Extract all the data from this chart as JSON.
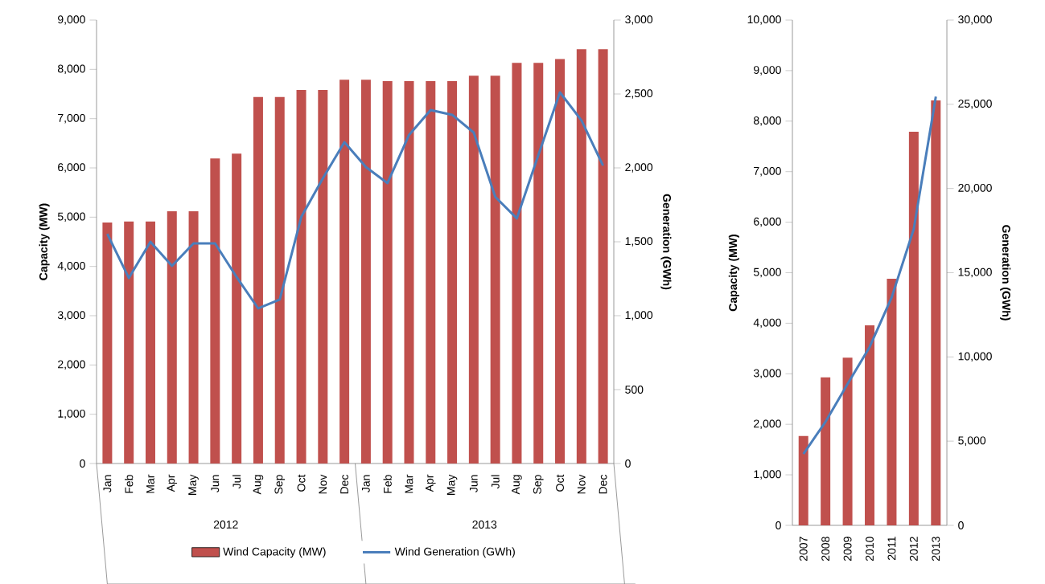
{
  "chart_data": [
    {
      "type": "bar",
      "categories": [
        "Jan",
        "Feb",
        "Mar",
        "Apr",
        "May",
        "Jun",
        "Jul",
        "Aug",
        "Sep",
        "Oct",
        "Nov",
        "Dec",
        "Jan",
        "Feb",
        "Mar",
        "Apr",
        "May",
        "Jun",
        "Jul",
        "Aug",
        "Sep",
        "Oct",
        "Nov",
        "Dec"
      ],
      "series": [
        {
          "name": "Wind Capacity (MW)",
          "color": "#c0504d",
          "values": [
            4890,
            4910,
            4910,
            5120,
            5120,
            6190,
            6290,
            7440,
            7440,
            7580,
            7580,
            7790,
            7790,
            7760,
            7760,
            7760,
            7760,
            7870,
            7870,
            8130,
            8130,
            8210,
            8410,
            8410
          ]
        },
        {
          "name": "Wind Generation (GWh)",
          "type": "line",
          "axis": "y2",
          "color": "#4a7ebb",
          "values": [
            1554,
            1255,
            1500,
            1337,
            1489,
            1489,
            1261,
            1049,
            1109,
            1668,
            1929,
            2174,
            2005,
            1897,
            2223,
            2391,
            2359,
            2239,
            1804,
            1658,
            2087,
            2511,
            2321,
            2016
          ]
        }
      ],
      "ylabel": "Capacity (MW)",
      "y2label": "Generation (GWh)",
      "ylim": [
        0,
        9000
      ],
      "yticks": [
        {
          "value": 0,
          "label": "0"
        },
        {
          "value": 1000,
          "label": "1,000"
        },
        {
          "value": 2000,
          "label": "2,000"
        },
        {
          "value": 3000,
          "label": "3,000"
        },
        {
          "value": 4000,
          "label": "4,000"
        },
        {
          "value": 5000,
          "label": "5,000"
        },
        {
          "value": 6000,
          "label": "6,000"
        },
        {
          "value": 7000,
          "label": "7,000"
        },
        {
          "value": 8000,
          "label": "8,000"
        },
        {
          "value": 9000,
          "label": "9,000"
        }
      ],
      "y2lim": [
        0,
        3000
      ],
      "y2ticks": [
        {
          "value": 0,
          "label": "0"
        },
        {
          "value": 500,
          "label": "500"
        },
        {
          "value": 1000,
          "label": "1,000"
        },
        {
          "value": 1500,
          "label": "1,500"
        },
        {
          "value": 2000,
          "label": "2,000"
        },
        {
          "value": 2500,
          "label": "2,500"
        },
        {
          "value": 3000,
          "label": "3,000"
        }
      ],
      "annotations": [
        "2012",
        "2013"
      ],
      "legend": "bottom"
    },
    {
      "type": "bar",
      "categories": [
        "2007",
        "2008",
        "2009",
        "2010",
        "2011",
        "2012",
        "2013"
      ],
      "series": [
        {
          "color": "#c0504d",
          "values": [
            1770,
            2930,
            3320,
            3960,
            4880,
            7790,
            8410
          ]
        },
        {
          "type": "line",
          "axis": "y2",
          "color": "#4a7ebb",
          "values": [
            4240,
            6150,
            8390,
            10590,
            13540,
            17600,
            25460
          ]
        }
      ],
      "ylabel": "Capacity (MW)",
      "y2label": "Generation (GWh)",
      "ylim": [
        0,
        10000
      ],
      "yticks": [
        {
          "value": 0,
          "label": "0"
        },
        {
          "value": 1000,
          "label": "1,000"
        },
        {
          "value": 2000,
          "label": "2,000"
        },
        {
          "value": 3000,
          "label": "3,000"
        },
        {
          "value": 4000,
          "label": "4,000"
        },
        {
          "value": 5000,
          "label": "5,000"
        },
        {
          "value": 6000,
          "label": "6,000"
        },
        {
          "value": 7000,
          "label": "7,000"
        },
        {
          "value": 8000,
          "label": "8,000"
        },
        {
          "value": 9000,
          "label": "9,000"
        },
        {
          "value": 10000,
          "label": "10,000"
        }
      ],
      "y2lim": [
        0,
        30000
      ],
      "y2ticks": [
        {
          "value": 0,
          "label": "0"
        },
        {
          "value": 5000,
          "label": "5,000"
        },
        {
          "value": 10000,
          "label": "10,000"
        },
        {
          "value": 15000,
          "label": "15,000"
        },
        {
          "value": 20000,
          "label": "20,000"
        },
        {
          "value": 25000,
          "label": "25,000"
        },
        {
          "value": 30000,
          "label": "30,000"
        }
      ]
    }
  ]
}
